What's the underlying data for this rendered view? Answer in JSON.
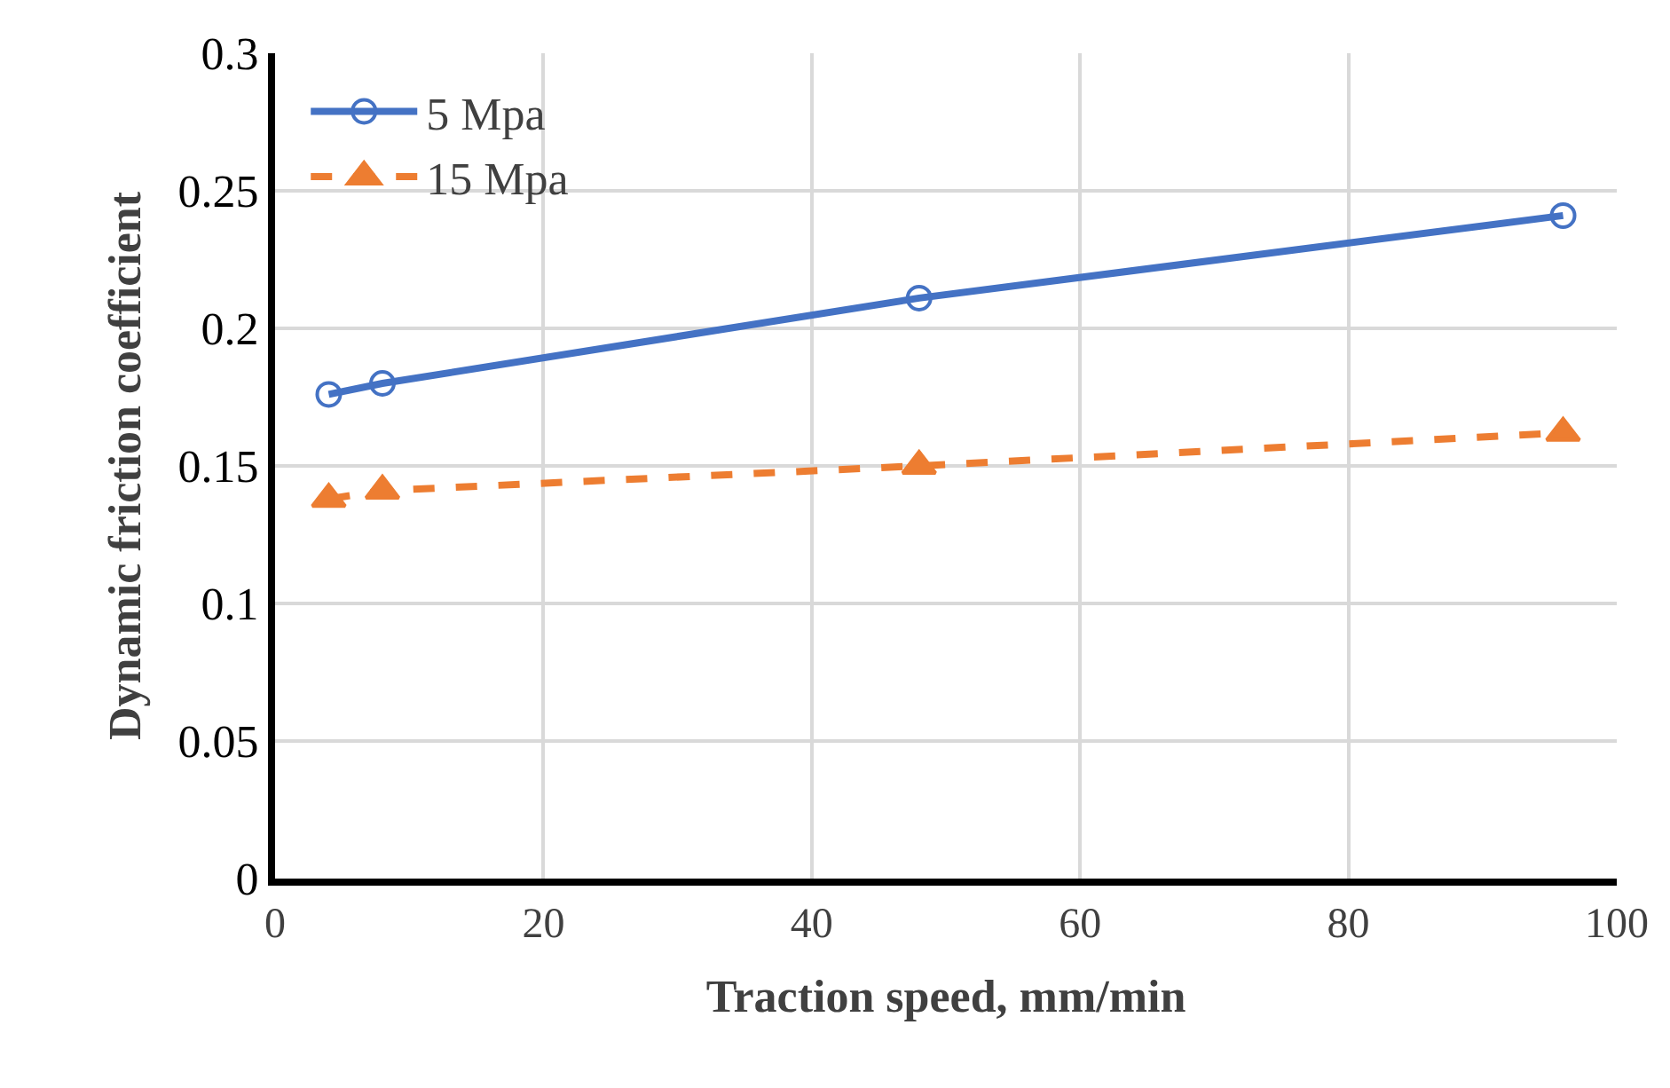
{
  "chart_data": {
    "type": "line",
    "xlabel": "Traction speed, mm/min",
    "ylabel": "Dynamic friction coefficient",
    "x": [
      4,
      8,
      48,
      96
    ],
    "series": [
      {
        "name": "5 Mpa",
        "color": "#4472c4",
        "values": [
          0.176,
          0.18,
          0.211,
          0.241
        ],
        "marker": "circle",
        "line_style": "solid"
      },
      {
        "name": "15 Mpa",
        "color": "#ed7d31",
        "values": [
          0.138,
          0.141,
          0.15,
          0.162
        ],
        "marker": "triangle",
        "line_style": "dashed"
      }
    ],
    "xlim": [
      0,
      100
    ],
    "xticks": [
      0,
      20,
      40,
      60,
      80,
      100
    ],
    "ylim": [
      0,
      0.3
    ],
    "yticks": [
      0,
      0.05,
      0.1,
      0.15,
      0.2,
      0.25,
      0.3
    ],
    "grid": true,
    "legend": "top left"
  }
}
